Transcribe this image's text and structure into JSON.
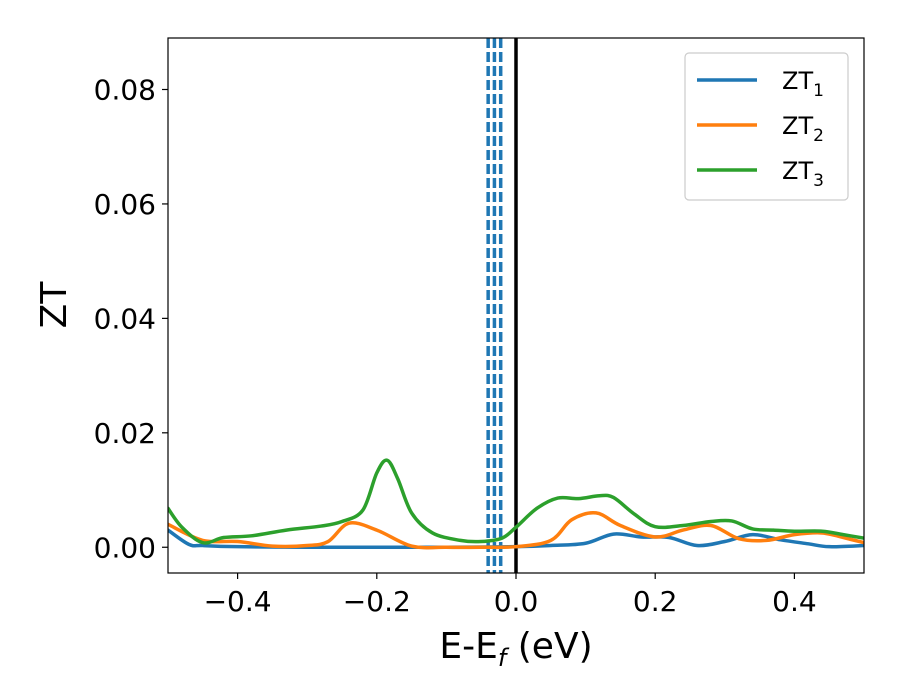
{
  "chart_data": {
    "type": "line",
    "xlabel": "E-E",
    "xlabel_sub": "f",
    "xlabel_unit": " (eV)",
    "ylabel": "ZT",
    "xlim": [
      -0.5,
      0.5
    ],
    "ylim": [
      -0.0045,
      0.089
    ],
    "xticks": [
      -0.4,
      -0.2,
      0.0,
      0.2,
      0.4
    ],
    "xtick_labels": [
      "−0.4",
      "−0.2",
      "0.0",
      "0.2",
      "0.4"
    ],
    "yticks": [
      0.0,
      0.02,
      0.04,
      0.06,
      0.08
    ],
    "ytick_labels": [
      "0.00",
      "0.02",
      "0.04",
      "0.06",
      "0.08"
    ],
    "legend_position": "top-right",
    "vertical_lines": [
      {
        "x": 0.0,
        "style": "solid",
        "color": "#000000"
      },
      {
        "x": -0.04,
        "style": "dashed",
        "color": "#1f77b4"
      },
      {
        "x": -0.031,
        "style": "dashed",
        "color": "#1f77b4"
      },
      {
        "x": -0.022,
        "style": "dashed",
        "color": "#1f77b4"
      }
    ],
    "series": [
      {
        "name": "ZT",
        "sub": "1",
        "color": "#1f77b4",
        "x": [
          -0.5,
          -0.47,
          -0.45,
          -0.4,
          -0.3,
          -0.2,
          -0.1,
          0.0,
          0.05,
          0.1,
          0.14,
          0.18,
          0.22,
          0.26,
          0.3,
          0.34,
          0.38,
          0.42,
          0.45,
          0.5
        ],
        "y": [
          0.003,
          0.0005,
          0.0003,
          0.0001,
          0.0,
          0.0,
          0.0,
          0.0001,
          0.0003,
          0.0007,
          0.0023,
          0.0018,
          0.0017,
          0.0003,
          0.001,
          0.0022,
          0.0013,
          0.0006,
          0.0001,
          0.0003
        ]
      },
      {
        "name": "ZT",
        "sub": "2",
        "color": "#ff7f0e",
        "x": [
          -0.5,
          -0.45,
          -0.4,
          -0.35,
          -0.3,
          -0.27,
          -0.24,
          -0.2,
          -0.15,
          -0.1,
          -0.05,
          0.0,
          0.05,
          0.08,
          0.115,
          0.15,
          0.2,
          0.24,
          0.28,
          0.32,
          0.36,
          0.4,
          0.44,
          0.48,
          0.5
        ],
        "y": [
          0.004,
          0.0012,
          0.001,
          0.0002,
          0.0003,
          0.001,
          0.0042,
          0.003,
          0.0002,
          0.0,
          0.0,
          0.0001,
          0.0012,
          0.0048,
          0.006,
          0.0038,
          0.0018,
          0.003,
          0.0038,
          0.0015,
          0.0012,
          0.0022,
          0.0025,
          0.0014,
          0.0008
        ]
      },
      {
        "name": "ZT",
        "sub": "3",
        "color": "#2ca02c",
        "x": [
          -0.5,
          -0.48,
          -0.45,
          -0.42,
          -0.38,
          -0.33,
          -0.28,
          -0.25,
          -0.22,
          -0.2,
          -0.185,
          -0.17,
          -0.15,
          -0.12,
          -0.08,
          -0.05,
          -0.02,
          0.0,
          0.03,
          0.06,
          0.09,
          0.12,
          0.14,
          0.17,
          0.2,
          0.24,
          0.28,
          0.31,
          0.34,
          0.37,
          0.4,
          0.44,
          0.47,
          0.5
        ],
        "y": [
          0.0068,
          0.0035,
          0.0008,
          0.0017,
          0.002,
          0.003,
          0.0037,
          0.0045,
          0.0065,
          0.013,
          0.0152,
          0.012,
          0.006,
          0.0025,
          0.0012,
          0.001,
          0.0016,
          0.0035,
          0.0068,
          0.0086,
          0.0085,
          0.009,
          0.0087,
          0.0058,
          0.0036,
          0.0038,
          0.0045,
          0.0046,
          0.0032,
          0.003,
          0.0028,
          0.0028,
          0.0022,
          0.0016
        ]
      }
    ]
  }
}
